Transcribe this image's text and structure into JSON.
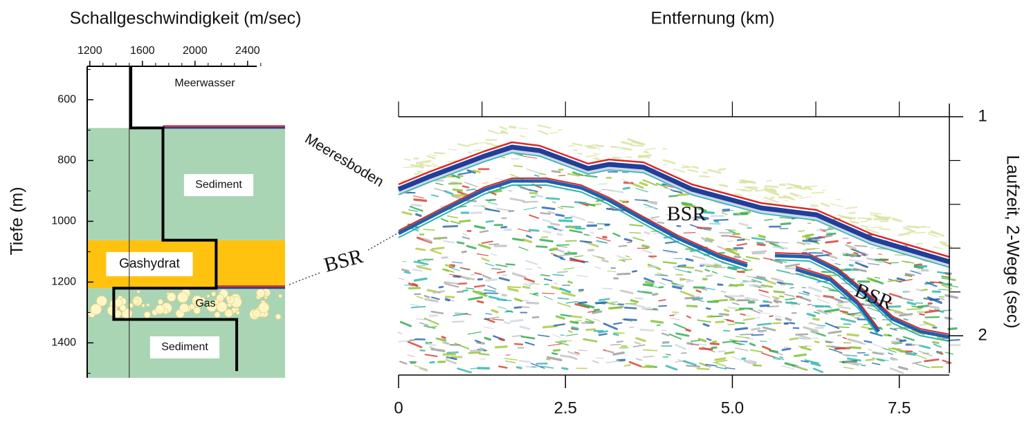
{
  "velocity_panel": {
    "title": "Schallgeschwindigkeit (m/sec)",
    "y_label": "Tiefe (m)",
    "xlim": [
      1180,
      2685
    ],
    "ylim": [
      490,
      1515
    ],
    "xticks": [
      1200,
      1600,
      2000,
      2400
    ],
    "yticks": [
      600,
      800,
      1000,
      1200,
      1400
    ],
    "reference_velocity": 1500,
    "layers": [
      {
        "label": "Meerwasser",
        "top": 490,
        "bottom": 693,
        "color": "#ffffff",
        "boxed": false
      },
      {
        "label": "Sediment",
        "top": 693,
        "bottom": 1062,
        "color": "#a9d5b5",
        "boxed": true
      },
      {
        "label": "Gashydrat",
        "top": 1062,
        "bottom": 1220,
        "color": "#ffc20e",
        "boxed": true
      },
      {
        "label": "Gas",
        "top": 1220,
        "bottom": 1323,
        "color": "#a9d5b5",
        "boxed": false
      },
      {
        "label": "Sediment",
        "top": 1323,
        "bottom": 1515,
        "color": "#a9d5b5",
        "boxed": true
      }
    ],
    "profile": {
      "depth": [
        490,
        693,
        693,
        1062,
        1062,
        1220,
        1220,
        1323,
        1323,
        1493
      ],
      "velocity": [
        1512,
        1512,
        1756,
        1756,
        2161,
        2161,
        1382,
        1382,
        2317,
        2317
      ]
    }
  },
  "seismic_panel": {
    "title": "Entfernung (km)",
    "y_label": "Laufzeit, 2-Wege (sec)",
    "xlim": [
      0,
      8.25
    ],
    "ylim": [
      0.94,
      2.17
    ],
    "xticks": [
      0,
      2.5,
      {
        "value": 5,
        "label": "5.0"
      },
      7.5
    ],
    "minor_xticks": [
      1.25,
      3.75,
      6.25
    ],
    "yticks": [
      1,
      2
    ],
    "minor_yticks": [
      1.2,
      1.4,
      1.6,
      1.8
    ],
    "annotations": [
      "Meeresboden",
      "BSR",
      "BSR",
      "BSR"
    ]
  }
}
